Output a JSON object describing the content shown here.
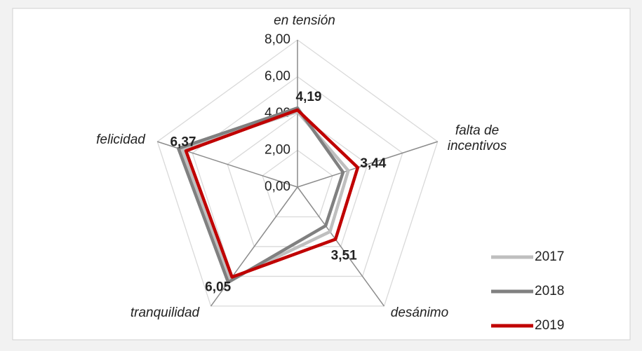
{
  "chart_data": {
    "type": "radar",
    "categories": [
      "en tensión",
      "falta de incentivos",
      "desánimo",
      "tranquilidad",
      "felicidad"
    ],
    "series": [
      {
        "name": "2017",
        "color": "#bfbfbf",
        "values": [
          4.1,
          2.9,
          3.0,
          6.2,
          6.6
        ]
      },
      {
        "name": "2018",
        "color": "#808080",
        "values": [
          4.3,
          2.6,
          2.6,
          6.4,
          6.8
        ]
      },
      {
        "name": "2019",
        "color": "#c00000",
        "values": [
          4.19,
          3.44,
          3.51,
          6.05,
          6.37
        ],
        "value_labels": [
          "4,19",
          "3,44",
          "3,51",
          "6,05",
          "6,37"
        ]
      }
    ],
    "ylim": [
      0,
      8
    ],
    "yticks": [
      {
        "value": 0,
        "label": "0,00"
      },
      {
        "value": 2,
        "label": "2,00"
      },
      {
        "value": 4,
        "label": "4,00"
      },
      {
        "value": 6,
        "label": "6,00"
      },
      {
        "value": 8,
        "label": "8,00"
      }
    ],
    "grid": true,
    "legend": "lower right"
  }
}
